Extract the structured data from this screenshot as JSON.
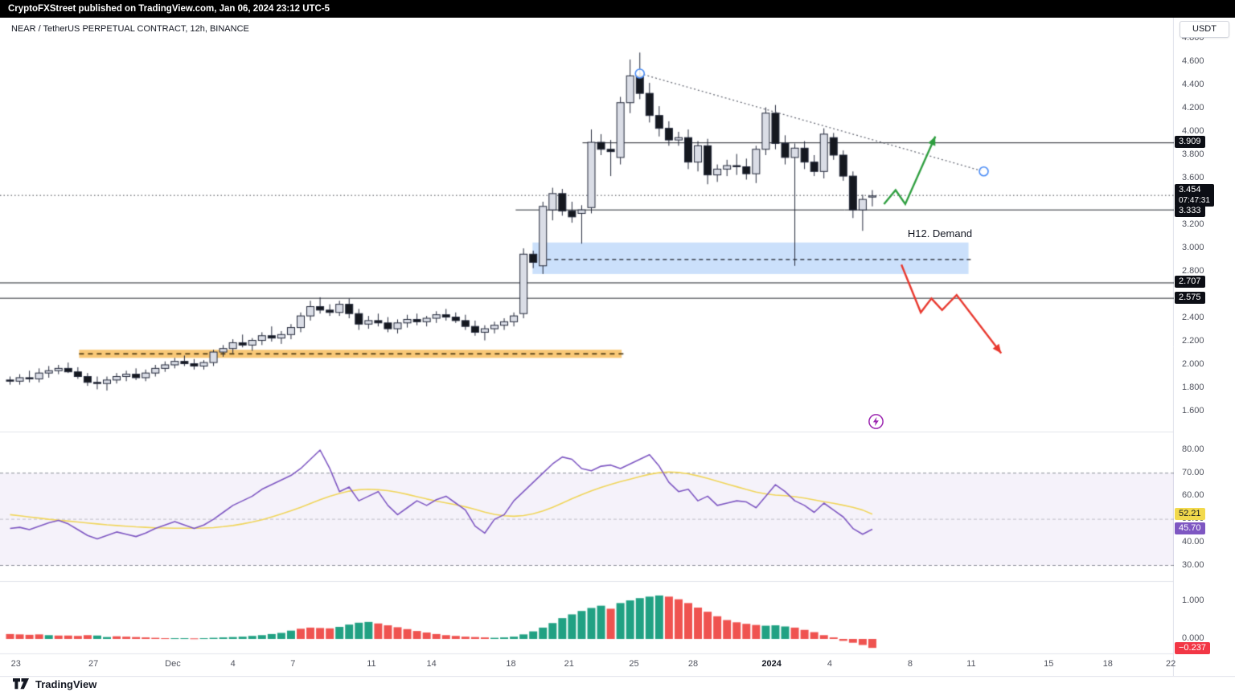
{
  "header": {
    "publish_text": "CryptoFXStreet published on TradingView.com, Jan 06, 2024 23:12 UTC-5"
  },
  "chart": {
    "symbol_title": "NEAR / TetherUS PERPETUAL CONTRACT, 12h, BINANCE",
    "currency_button": "USDT"
  },
  "tags": {
    "level_3909": "3.909",
    "current_price": "3.454",
    "countdown": "07:47:31",
    "level_3333": "3.333",
    "level_2707": "2.707",
    "level_2575": "2.575",
    "rsi_ma_value": "52.21",
    "rsi_value": "45.70",
    "hist_value": "−0.237"
  },
  "annotations_text": {
    "demand_label": "H12. Demand"
  },
  "watermark": {
    "brand": "TradingView"
  },
  "colors": {
    "up_fill": "#dadde6",
    "down_fill": "#15181f",
    "candle_border": "#23283a",
    "level_line": "#23272e",
    "rsi_line": "#7e57c2",
    "rsi_ma_line": "#f0d55a",
    "rsi_band": "rgba(126,87,194,0.08)",
    "hist_up": "#21a183",
    "hist_down": "#ef5350",
    "demand_zone": "rgba(130,180,245,0.42)",
    "orange_zone": "rgba(245,166,35,0.62)",
    "green_arrow": "#2e9e3f",
    "red_arrow": "#e8382e",
    "trendline": "#6a6d78",
    "circle_stroke": "#4c8df5",
    "flash": "#9c27b0",
    "tag_bg": "#0c0e15",
    "rsi_ma_tag_bg": "#f2d94c",
    "rsi_tag_bg": "#7e57c2",
    "hist_tag_bg": "#f23645"
  },
  "price_axis_ticks": [
    "4.800",
    "4.600",
    "4.400",
    "4.200",
    "4.000",
    "3.800",
    "3.600",
    "3.200",
    "3.000",
    "2.800",
    "2.400",
    "2.200",
    "2.000",
    "1.800",
    "1.600"
  ],
  "rsi_axis_ticks": [
    "80.00",
    "70.00",
    "60.00",
    "50.00",
    "40.00",
    "30.00"
  ],
  "hist_axis_ticks": [
    "1.000",
    "0.000"
  ],
  "time_ticks": [
    {
      "label": "23",
      "i": 0.6
    },
    {
      "label": "27",
      "i": 8.6
    },
    {
      "label": "Dec",
      "i": 16.8
    },
    {
      "label": "4",
      "i": 23.0
    },
    {
      "label": "7",
      "i": 29.2
    },
    {
      "label": "11",
      "i": 37.3
    },
    {
      "label": "14",
      "i": 43.5
    },
    {
      "label": "18",
      "i": 51.7
    },
    {
      "label": "21",
      "i": 57.7
    },
    {
      "label": "25",
      "i": 64.4
    },
    {
      "label": "28",
      "i": 70.5
    },
    {
      "label": "2024",
      "i": 78.6,
      "bold": true
    },
    {
      "label": "4",
      "i": 84.6
    },
    {
      "label": "8",
      "i": 92.9
    },
    {
      "label": "11",
      "i": 99.2
    },
    {
      "label": "15",
      "i": 107.2
    },
    {
      "label": "18",
      "i": 113.3
    },
    {
      "label": "22",
      "i": 119.8
    }
  ],
  "chart_data": {
    "type": "candlestick",
    "title": "NEAR / TetherUS PERPETUAL CONTRACT, 12h, BINANCE",
    "price_range": [
      1.43,
      4.98
    ],
    "current_price": 3.454,
    "candles": [
      [
        1.87,
        1.9,
        1.83,
        1.86
      ],
      [
        1.86,
        1.92,
        1.83,
        1.89
      ],
      [
        1.89,
        1.95,
        1.85,
        1.88
      ],
      [
        1.88,
        1.97,
        1.85,
        1.93
      ],
      [
        1.93,
        1.99,
        1.89,
        1.95
      ],
      [
        1.95,
        2.0,
        1.92,
        1.97
      ],
      [
        1.97,
        2.02,
        1.93,
        1.94
      ],
      [
        1.94,
        1.98,
        1.88,
        1.9
      ],
      [
        1.9,
        1.93,
        1.82,
        1.85
      ],
      [
        1.85,
        1.9,
        1.79,
        1.84
      ],
      [
        1.84,
        1.9,
        1.78,
        1.87
      ],
      [
        1.87,
        1.93,
        1.84,
        1.9
      ],
      [
        1.9,
        1.95,
        1.86,
        1.92
      ],
      [
        1.92,
        1.97,
        1.87,
        1.89
      ],
      [
        1.89,
        1.96,
        1.86,
        1.93
      ],
      [
        1.93,
        2.0,
        1.9,
        1.97
      ],
      [
        1.97,
        2.03,
        1.94,
        2.0
      ],
      [
        2.0,
        2.06,
        1.97,
        2.03
      ],
      [
        2.03,
        2.08,
        1.99,
        2.01
      ],
      [
        2.01,
        2.05,
        1.96,
        1.99
      ],
      [
        1.99,
        2.04,
        1.96,
        2.02
      ],
      [
        2.02,
        2.13,
        1.99,
        2.11
      ],
      [
        2.11,
        2.17,
        2.07,
        2.14
      ],
      [
        2.14,
        2.22,
        2.1,
        2.19
      ],
      [
        2.19,
        2.26,
        2.15,
        2.17
      ],
      [
        2.17,
        2.23,
        2.12,
        2.21
      ],
      [
        2.21,
        2.28,
        2.17,
        2.25
      ],
      [
        2.25,
        2.33,
        2.2,
        2.23
      ],
      [
        2.23,
        2.29,
        2.18,
        2.26
      ],
      [
        2.26,
        2.35,
        2.22,
        2.32
      ],
      [
        2.32,
        2.45,
        2.28,
        2.42
      ],
      [
        2.42,
        2.55,
        2.38,
        2.5
      ],
      [
        2.5,
        2.58,
        2.44,
        2.47
      ],
      [
        2.47,
        2.52,
        2.42,
        2.45
      ],
      [
        2.45,
        2.55,
        2.42,
        2.52
      ],
      [
        2.52,
        2.57,
        2.4,
        2.44
      ],
      [
        2.44,
        2.48,
        2.3,
        2.35
      ],
      [
        2.35,
        2.42,
        2.31,
        2.38
      ],
      [
        2.38,
        2.44,
        2.33,
        2.36
      ],
      [
        2.36,
        2.41,
        2.28,
        2.31
      ],
      [
        2.31,
        2.39,
        2.27,
        2.36
      ],
      [
        2.36,
        2.43,
        2.32,
        2.39
      ],
      [
        2.39,
        2.44,
        2.34,
        2.37
      ],
      [
        2.37,
        2.42,
        2.33,
        2.4
      ],
      [
        2.4,
        2.46,
        2.36,
        2.43
      ],
      [
        2.43,
        2.48,
        2.38,
        2.41
      ],
      [
        2.41,
        2.45,
        2.36,
        2.38
      ],
      [
        2.38,
        2.43,
        2.3,
        2.33
      ],
      [
        2.33,
        2.38,
        2.25,
        2.28
      ],
      [
        2.28,
        2.34,
        2.21,
        2.31
      ],
      [
        2.31,
        2.37,
        2.27,
        2.34
      ],
      [
        2.34,
        2.4,
        2.3,
        2.37
      ],
      [
        2.37,
        2.45,
        2.33,
        2.42
      ],
      [
        2.44,
        3.0,
        2.4,
        2.95
      ],
      [
        2.95,
        2.98,
        2.83,
        2.88
      ],
      [
        2.85,
        3.4,
        2.78,
        3.36
      ],
      [
        3.33,
        3.52,
        3.24,
        3.47
      ],
      [
        3.47,
        3.51,
        3.28,
        3.32
      ],
      [
        3.32,
        3.4,
        3.22,
        3.27
      ],
      [
        3.3,
        3.37,
        3.04,
        3.33
      ],
      [
        3.35,
        4.02,
        3.3,
        3.91
      ],
      [
        3.91,
        3.98,
        3.8,
        3.85
      ],
      [
        3.85,
        3.93,
        3.62,
        3.83
      ],
      [
        3.78,
        4.3,
        3.72,
        4.25
      ],
      [
        4.25,
        4.62,
        4.16,
        4.48
      ],
      [
        4.48,
        4.68,
        4.28,
        4.33
      ],
      [
        4.33,
        4.42,
        4.08,
        4.14
      ],
      [
        4.14,
        4.22,
        3.96,
        4.03
      ],
      [
        4.03,
        4.09,
        3.88,
        3.93
      ],
      [
        3.93,
        4.0,
        3.88,
        3.95
      ],
      [
        3.95,
        4.02,
        3.68,
        3.74
      ],
      [
        3.74,
        3.92,
        3.66,
        3.88
      ],
      [
        3.88,
        3.94,
        3.55,
        3.63
      ],
      [
        3.63,
        3.72,
        3.57,
        3.68
      ],
      [
        3.68,
        3.76,
        3.62,
        3.71
      ],
      [
        3.71,
        3.81,
        3.63,
        3.7
      ],
      [
        3.7,
        3.77,
        3.59,
        3.64
      ],
      [
        3.64,
        3.88,
        3.56,
        3.85
      ],
      [
        3.85,
        4.21,
        3.8,
        4.16
      ],
      [
        4.16,
        4.23,
        3.85,
        3.9
      ],
      [
        3.9,
        3.97,
        3.72,
        3.78
      ],
      [
        3.78,
        3.9,
        2.85,
        3.86
      ],
      [
        3.86,
        3.92,
        3.68,
        3.74
      ],
      [
        3.74,
        3.8,
        3.62,
        3.66
      ],
      [
        3.66,
        4.03,
        3.6,
        3.98
      ],
      [
        3.95,
        3.99,
        3.76,
        3.8
      ],
      [
        3.8,
        3.84,
        3.58,
        3.62
      ],
      [
        3.62,
        3.66,
        3.26,
        3.33
      ],
      [
        3.33,
        3.46,
        3.15,
        3.42
      ],
      [
        3.44,
        3.5,
        3.36,
        3.45
      ]
    ],
    "levels": [
      {
        "price": 3.909,
        "from_i": 59.5
      },
      {
        "price": 3.333,
        "from_i": 52.6
      },
      {
        "price": 2.707,
        "from_i": -1
      },
      {
        "price": 2.575,
        "from_i": -1
      }
    ],
    "demand_zone": {
      "label": "H12. Demand",
      "i0": 54.3,
      "i1": 99.3,
      "top": 3.05,
      "bottom": 2.78,
      "mid_dashed": 2.905
    },
    "orange_zone": {
      "i0": 7.5,
      "i1": 63.5,
      "top": 2.13,
      "bottom": 2.06,
      "mid_dashed": 2.095
    },
    "trendline": {
      "p0": {
        "i": 65.0,
        "price": 4.5
      },
      "p1": {
        "i": 100.5,
        "price": 3.66
      }
    },
    "green_arrow": [
      [
        90.2,
        3.38
      ],
      [
        91.4,
        3.5
      ],
      [
        92.4,
        3.38
      ],
      [
        95.5,
        3.96
      ]
    ],
    "red_arrow": [
      [
        92.0,
        2.86
      ],
      [
        94.0,
        2.45
      ],
      [
        95.1,
        2.57
      ],
      [
        96.2,
        2.47
      ],
      [
        97.7,
        2.6
      ],
      [
        102.3,
        2.1
      ]
    ],
    "flash_marker": {
      "i": 89.3,
      "price": 1.52
    },
    "indicators": [
      {
        "name": "RSI",
        "length_hint": "12h",
        "band": [
          30,
          70
        ],
        "dashed_levels": [
          70,
          50,
          30
        ],
        "last_value": 45.7,
        "ma_last_value": 52.21,
        "rsi": [
          46,
          46.5,
          45.5,
          47,
          48.5,
          49.5,
          48,
          45.5,
          43,
          41.5,
          43,
          44.5,
          43.5,
          42.5,
          44,
          46,
          47.5,
          49,
          47.5,
          46,
          47.5,
          50,
          53,
          56,
          58,
          60,
          63,
          65,
          67,
          69,
          72,
          76,
          80,
          72,
          62,
          64,
          58,
          60,
          62,
          56,
          52,
          55,
          58,
          56,
          58.5,
          60,
          57,
          54,
          47,
          44,
          50,
          52,
          58,
          62,
          66,
          70,
          74,
          77,
          76,
          72,
          71,
          73,
          73.5,
          72,
          74,
          76,
          78,
          73,
          66,
          62,
          63,
          58,
          60,
          56,
          57,
          58,
          57.5,
          55,
          60,
          65,
          62,
          58,
          56,
          53,
          57,
          54,
          51,
          46,
          43.5,
          45.7
        ],
        "rsi_ma": [
          52,
          51.5,
          51,
          50.5,
          50,
          49.6,
          49.2,
          48.8,
          48.4,
          48,
          47.6,
          47.3,
          47,
          46.7,
          46.5,
          46.3,
          46.2,
          46.1,
          46.1,
          46.1,
          46.2,
          46.4,
          46.8,
          47.3,
          48,
          48.8,
          49.8,
          51,
          52.3,
          53.7,
          55.2,
          56.8,
          58.5,
          60,
          61.2,
          62.2,
          62.8,
          63,
          62.8,
          62.4,
          61.7,
          60.8,
          59.8,
          58.8,
          57.9,
          57.1,
          56.3,
          55.4,
          54.3,
          53.1,
          52.1,
          51.5,
          51.3,
          51.6,
          52.4,
          53.6,
          55.2,
          57,
          58.9,
          60.7,
          62.3,
          63.8,
          65.1,
          66.3,
          67.4,
          68.5,
          69.5,
          70.2,
          70.5,
          70.3,
          69.7,
          68.8,
          67.7,
          66.5,
          65.3,
          64.1,
          62.9,
          61.8,
          61,
          60.5,
          60.2,
          59.8,
          59.2,
          58.4,
          57.6,
          56.9,
          56.1,
          55.2,
          54,
          52.21
        ]
      },
      {
        "name": "Histogram",
        "last_value": -0.237,
        "range_hint": [
          0,
          1
        ],
        "values": [
          0.13,
          0.12,
          0.11,
          0.12,
          0.1,
          0.09,
          0.09,
          0.08,
          0.1,
          0.09,
          0.05,
          0.07,
          0.06,
          0.05,
          0.04,
          0.03,
          0.02,
          0.02,
          0.02,
          0.015,
          0.02,
          0.03,
          0.04,
          0.05,
          0.06,
          0.08,
          0.1,
          0.13,
          0.16,
          0.22,
          0.27,
          0.3,
          0.29,
          0.28,
          0.32,
          0.38,
          0.43,
          0.45,
          0.41,
          0.36,
          0.31,
          0.26,
          0.21,
          0.17,
          0.13,
          0.1,
          0.08,
          0.06,
          0.05,
          0.04,
          0.03,
          0.04,
          0.06,
          0.12,
          0.2,
          0.3,
          0.42,
          0.55,
          0.65,
          0.74,
          0.82,
          0.88,
          0.8,
          0.95,
          1.02,
          1.08,
          1.12,
          1.15,
          1.12,
          1.05,
          0.95,
          0.83,
          0.72,
          0.6,
          0.5,
          0.44,
          0.4,
          0.37,
          0.35,
          0.36,
          0.33,
          0.3,
          0.24,
          0.18,
          0.1,
          0.04,
          -0.05,
          -0.1,
          -0.16,
          -0.237
        ],
        "bar_colors": [
          "r",
          "r",
          "r",
          "r",
          "g",
          "r",
          "r",
          "r",
          "r",
          "g",
          "g",
          "r",
          "r",
          "r",
          "r",
          "r",
          "r",
          "g",
          "g",
          "r",
          "g",
          "g",
          "g",
          "g",
          "g",
          "g",
          "g",
          "g",
          "g",
          "g",
          "r",
          "r",
          "r",
          "r",
          "g",
          "g",
          "g",
          "g",
          "r",
          "r",
          "r",
          "r",
          "r",
          "r",
          "r",
          "r",
          "r",
          "r",
          "r",
          "r",
          "g",
          "g",
          "g",
          "g",
          "g",
          "g",
          "g",
          "g",
          "g",
          "g",
          "g",
          "g",
          "r",
          "g",
          "g",
          "g",
          "g",
          "g",
          "r",
          "r",
          "r",
          "r",
          "r",
          "r",
          "r",
          "r",
          "r",
          "r",
          "g",
          "g",
          "g",
          "r",
          "r",
          "r",
          "r",
          "r",
          "r",
          "r",
          "r",
          "r"
        ]
      }
    ]
  }
}
